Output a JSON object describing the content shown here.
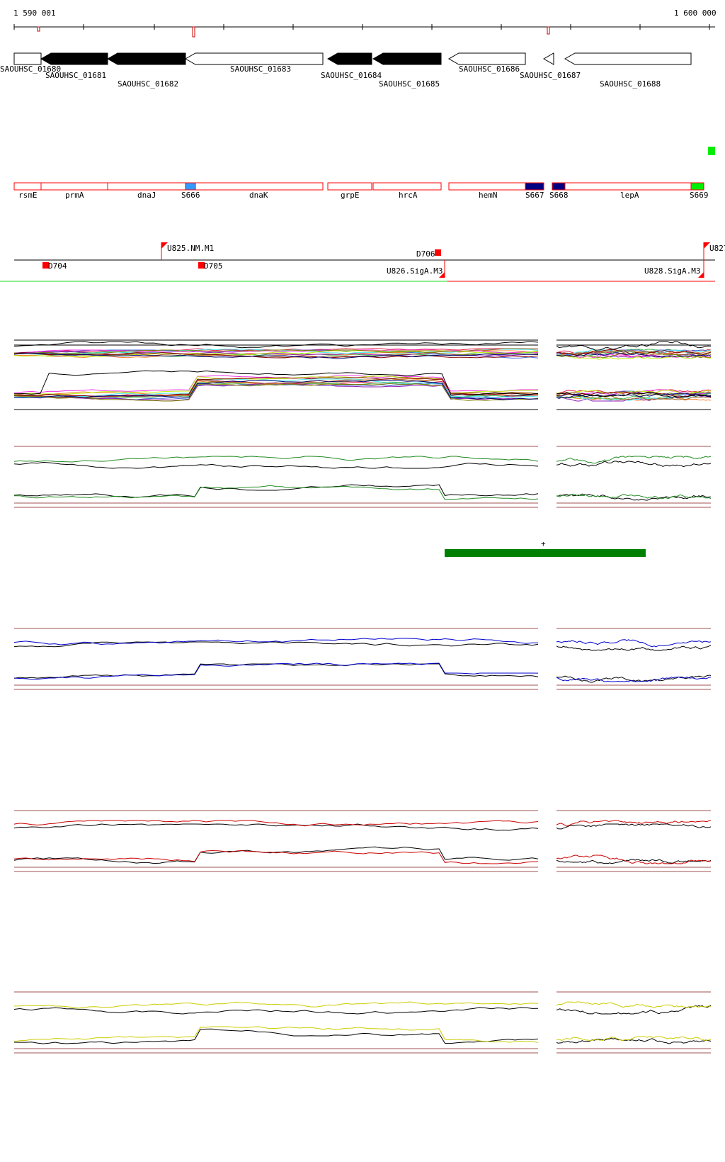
{
  "coords": {
    "start_label": "1 590 001",
    "end_label": "1 600 000"
  },
  "genes": [
    {
      "label": "SAOUHSC_01680",
      "strand": "+",
      "filled": false
    },
    {
      "label": "SAOUHSC_01681",
      "strand": "-",
      "filled": true
    },
    {
      "label": "SAOUHSC_01682",
      "strand": "-",
      "filled": true
    },
    {
      "label": "SAOUHSC_01683",
      "strand": "-",
      "filled": false
    },
    {
      "label": "SAOUHSC_01684",
      "strand": "-",
      "filled": true
    },
    {
      "label": "SAOUHSC_01685",
      "strand": "-",
      "filled": true
    },
    {
      "label": "SAOUHSC_01686",
      "strand": "-",
      "filled": false
    },
    {
      "label": "SAOUHSC_01687",
      "strand": "-",
      "filled": false
    },
    {
      "label": "SAOUHSC_01688",
      "strand": "-",
      "filled": false
    }
  ],
  "annotations": [
    {
      "label": "rsmE",
      "color": "#ffffff"
    },
    {
      "label": "prmA",
      "color": "#ffffff"
    },
    {
      "label": "dnaJ",
      "color": "#ffffff"
    },
    {
      "label": "S666",
      "color": "#3399ff"
    },
    {
      "label": "dnaK",
      "color": "#ffffff"
    },
    {
      "label": "grpE",
      "color": "#ffffff"
    },
    {
      "label": "hrcA",
      "color": "#ffffff"
    },
    {
      "label": "hemN",
      "color": "#ffffff"
    },
    {
      "label": "S667",
      "color": "#000080"
    },
    {
      "label": "S668",
      "color": "#000080"
    },
    {
      "label": "lepA",
      "color": "#ffffff"
    },
    {
      "label": "S669",
      "color": "#00ee00"
    }
  ],
  "features": {
    "up": [
      {
        "label": "U825.NM.M1"
      },
      {
        "label": "U827"
      }
    ],
    "down": [
      {
        "label": "D704"
      },
      {
        "label": "D705"
      },
      {
        "label": "D706"
      }
    ],
    "sigma": [
      {
        "label": "U826.SigA.M3"
      },
      {
        "label": "U828.SigA.M3"
      }
    ]
  },
  "segment_marker": "+",
  "colors": {
    "annotation_border": "#ff0000",
    "feature_red": "#ff0000",
    "segment_green": "#008000",
    "transcript_green": "#90ee90",
    "panel_green": "#228b22",
    "panel_blue": "#0000cc",
    "panel_red": "#cc0000",
    "panel_yellow": "#cccc00",
    "threshold_line": "#a05050"
  }
}
